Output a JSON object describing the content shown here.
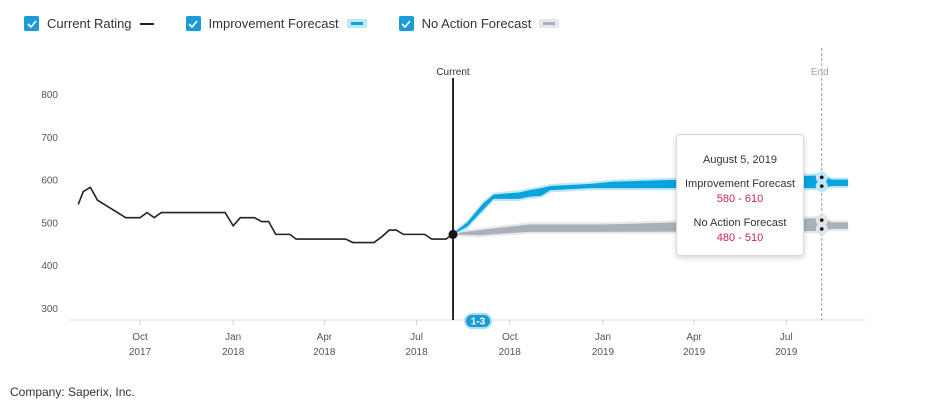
{
  "legend": [
    {
      "label": "Current Rating",
      "checked": true,
      "color": "#222222"
    },
    {
      "label": "Improvement Forecast",
      "checked": true,
      "color": "#0aa3dc"
    },
    {
      "label": "No Action Forecast",
      "checked": true,
      "color": "#a9b0b9"
    }
  ],
  "chart_data": {
    "type": "line",
    "y_ticks": [
      "800",
      "700",
      "600",
      "500",
      "400",
      "300"
    ],
    "ylim": [
      300,
      800
    ],
    "x_ticks": [
      {
        "date": "2017-10-01",
        "m": "Oct",
        "y": "2017"
      },
      {
        "date": "2018-01-01",
        "m": "Jan",
        "y": "2018"
      },
      {
        "date": "2018-04-01",
        "m": "Apr",
        "y": "2018"
      },
      {
        "date": "2018-07-01",
        "m": "Jul",
        "y": "2018"
      },
      {
        "date": "2018-10-01",
        "m": "Oct",
        "y": "2018"
      },
      {
        "date": "2019-01-01",
        "m": "Jan",
        "y": "2019"
      },
      {
        "date": "2019-04-01",
        "m": "Apr",
        "y": "2019"
      },
      {
        "date": "2019-07-01",
        "m": "Jul",
        "y": "2019"
      }
    ],
    "grid": false,
    "markers": {
      "current": {
        "label": "Current",
        "date": "2018-08-06"
      },
      "end": {
        "label": "End",
        "date": "2019-08-05"
      }
    },
    "badge": "1-3",
    "current_rating": [
      [
        "2017-08-01",
        542
      ],
      [
        "2017-08-06",
        572
      ],
      [
        "2017-08-13",
        582
      ],
      [
        "2017-08-20",
        552
      ],
      [
        "2017-09-17",
        511
      ],
      [
        "2017-10-01",
        511
      ],
      [
        "2017-10-08",
        523
      ],
      [
        "2017-10-15",
        511
      ],
      [
        "2017-10-22",
        523
      ],
      [
        "2017-12-24",
        523
      ],
      [
        "2018-01-01",
        492
      ],
      [
        "2018-01-08",
        511
      ],
      [
        "2018-01-22",
        511
      ],
      [
        "2018-01-29",
        502
      ],
      [
        "2018-02-05",
        502
      ],
      [
        "2018-02-12",
        472
      ],
      [
        "2018-02-26",
        472
      ],
      [
        "2018-03-04",
        461
      ],
      [
        "2018-04-22",
        461
      ],
      [
        "2018-04-29",
        453
      ],
      [
        "2018-05-20",
        453
      ],
      [
        "2018-05-28",
        467
      ],
      [
        "2018-06-04",
        482
      ],
      [
        "2018-06-11",
        482
      ],
      [
        "2018-06-18",
        472
      ],
      [
        "2018-07-09",
        472
      ],
      [
        "2018-07-16",
        461
      ],
      [
        "2018-07-30",
        461
      ],
      [
        "2018-08-06",
        472
      ]
    ],
    "improvement_forecast": [
      [
        "2018-08-06",
        472,
        474
      ],
      [
        "2018-08-20",
        490,
        500
      ],
      [
        "2018-09-05",
        530,
        545
      ],
      [
        "2018-09-15",
        555,
        565
      ],
      [
        "2018-10-10",
        555,
        570
      ],
      [
        "2018-10-20",
        560,
        575
      ],
      [
        "2018-11-01",
        562,
        580
      ],
      [
        "2018-11-10",
        575,
        585
      ],
      [
        "2018-12-20",
        580,
        590
      ],
      [
        "2019-01-10",
        580,
        595
      ],
      [
        "2019-08-05",
        580,
        610
      ],
      [
        "2019-08-15",
        585,
        600
      ],
      [
        "2019-08-31",
        585,
        600
      ]
    ],
    "no_action_forecast": [
      [
        "2018-08-06",
        472,
        474
      ],
      [
        "2018-09-01",
        470,
        482
      ],
      [
        "2018-10-01",
        475,
        490
      ],
      [
        "2018-10-20",
        478,
        495
      ],
      [
        "2019-01-01",
        478,
        495
      ],
      [
        "2019-08-05",
        480,
        510
      ],
      [
        "2019-08-15",
        485,
        500
      ],
      [
        "2019-08-31",
        485,
        500
      ]
    ]
  },
  "tooltip": {
    "date": "August 5, 2019",
    "improvement_label": "Improvement Forecast",
    "improvement_range": "580 - 610",
    "no_action_label": "No Action Forecast",
    "no_action_range": "480 - 510"
  },
  "footer": {
    "company": "Company: Saperix, Inc."
  }
}
